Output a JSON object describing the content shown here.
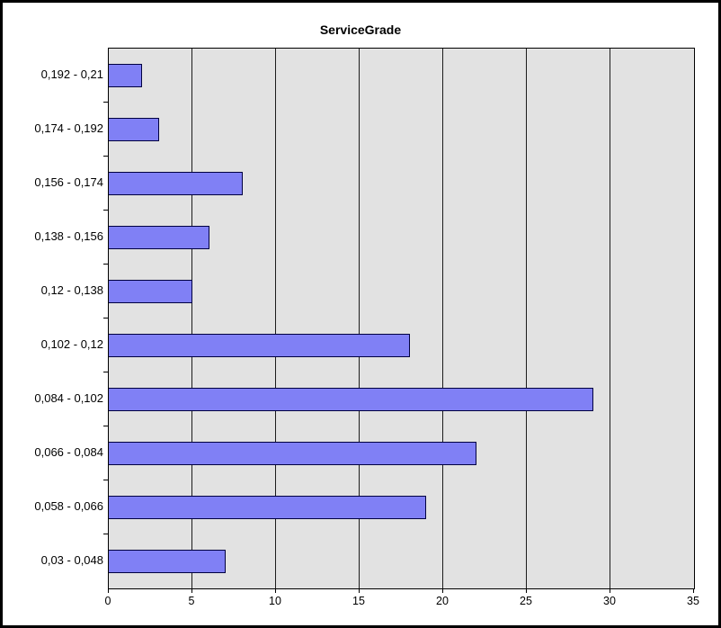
{
  "chart_data": {
    "type": "bar",
    "orientation": "horizontal",
    "title": "ServiceGrade",
    "categories": [
      "0,192 - 0,21",
      "0,174 - 0,192",
      "0,156 - 0,174",
      "0,138 - 0,156",
      "0,12 - 0,138",
      "0,102 - 0,12",
      "0,084 - 0,102",
      "0,066 - 0,084",
      "0,058 - 0,066",
      "0,03 - 0,048"
    ],
    "values": [
      2,
      3,
      8,
      6,
      5,
      18,
      29,
      22,
      19,
      7
    ],
    "x_ticks": [
      0,
      5,
      10,
      15,
      20,
      25,
      30,
      35
    ],
    "x_tick_labels": [
      "0",
      "5",
      "10",
      "15",
      "20",
      "25",
      "30",
      "35"
    ],
    "xlim": [
      0,
      35
    ],
    "xlabel": "",
    "ylabel": "",
    "grid": true,
    "legend": false,
    "colors": {
      "bar_fill": "#8080f5",
      "bar_border": "#000040",
      "plot_background": "#e2e2e2",
      "grid_line": "#1c1c1c",
      "frame_border": "#000000",
      "text": "#000000",
      "page_background": "#ffffff"
    }
  }
}
